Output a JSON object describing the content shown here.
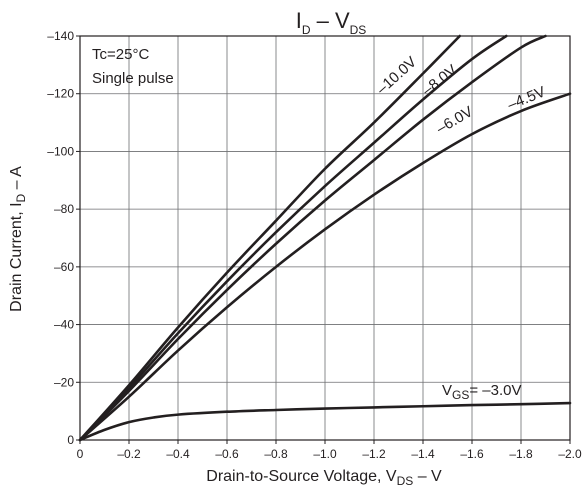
{
  "chart_data": {
    "type": "line",
    "title": "I",
    "title_sub_1": "D",
    "title_mid": " – V",
    "title_sub_2": "DS",
    "xlabel": "Drain-to-Source Voltage, V",
    "xlabel_sub": "DS",
    "xlabel_suffix": " – V",
    "ylabel": "Drain Current, I",
    "ylabel_sub": "D",
    "ylabel_suffix": " – A",
    "xlim": [
      0,
      -2.0
    ],
    "ylim": [
      0,
      -140
    ],
    "x_ticks": [
      0,
      -0.2,
      -0.4,
      -0.6,
      -0.8,
      -1.0,
      -1.2,
      -1.4,
      -1.6,
      -1.8,
      -2.0
    ],
    "x_tick_labels": [
      "0",
      "–0.2",
      "–0.4",
      "–0.6",
      "–0.8",
      "–1.0",
      "–1.2",
      "–1.4",
      "–1.6",
      "–1.8",
      "–2.0"
    ],
    "y_ticks": [
      0,
      -20,
      -40,
      -60,
      -80,
      -100,
      -120,
      -140
    ],
    "y_tick_labels": [
      "0",
      "–20",
      "–40",
      "–60",
      "–80",
      "–100",
      "–120",
      "–140"
    ],
    "grid": true,
    "annotations": [
      "Tc=25°C",
      "Single pulse"
    ],
    "series": [
      {
        "label": "–10.0V",
        "x": [
          0,
          -0.2,
          -0.4,
          -0.6,
          -0.8,
          -1.0,
          -1.2,
          -1.4,
          -1.55
        ],
        "y": [
          0,
          -19,
          -39,
          -58,
          -76,
          -94,
          -110,
          -127,
          -140
        ]
      },
      {
        "label": "–8.0V",
        "x": [
          0,
          -0.2,
          -0.4,
          -0.6,
          -0.8,
          -1.0,
          -1.2,
          -1.4,
          -1.6,
          -1.74
        ],
        "y": [
          0,
          -18,
          -37,
          -55,
          -72,
          -88,
          -103,
          -118,
          -132,
          -140
        ]
      },
      {
        "label": "–6.0V",
        "x": [
          0,
          -0.2,
          -0.4,
          -0.6,
          -0.8,
          -1.0,
          -1.2,
          -1.4,
          -1.6,
          -1.8,
          -1.9
        ],
        "y": [
          0,
          -17,
          -35,
          -52,
          -68,
          -83,
          -97,
          -111,
          -124,
          -136,
          -140
        ]
      },
      {
        "label": "–4.5V",
        "x": [
          0,
          -0.2,
          -0.4,
          -0.6,
          -0.8,
          -1.0,
          -1.2,
          -1.4,
          -1.6,
          -1.8,
          -2.0
        ],
        "y": [
          0,
          -15,
          -31,
          -46,
          -60,
          -73,
          -85,
          -96,
          -106,
          -114,
          -120
        ]
      },
      {
        "label_prefix": "V",
        "label_sub": "GS",
        "label": "= –3.0V",
        "x": [
          0,
          -0.1,
          -0.2,
          -0.3,
          -0.4,
          -0.6,
          -0.8,
          -1.0,
          -1.2,
          -1.4,
          -1.6,
          -1.8,
          -2.0
        ],
        "y": [
          0,
          -3.5,
          -6.2,
          -7.8,
          -8.8,
          -9.8,
          -10.4,
          -10.9,
          -11.3,
          -11.7,
          -12.1,
          -12.4,
          -12.8
        ]
      }
    ]
  }
}
